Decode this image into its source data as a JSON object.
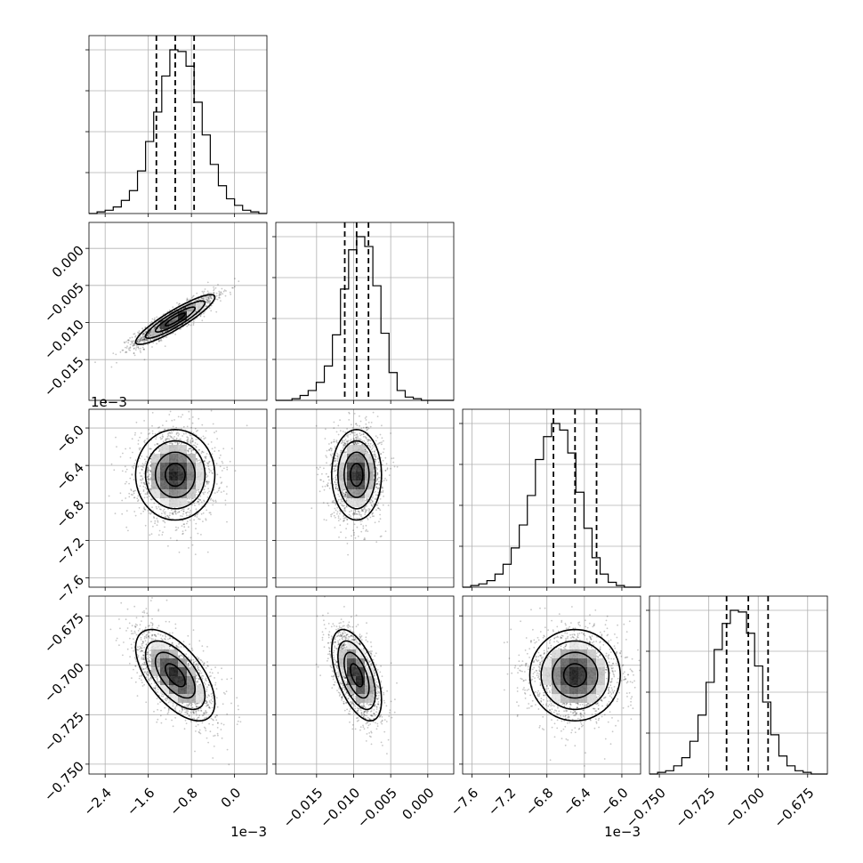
{
  "chart_data": {
    "type": "corner",
    "grid": true,
    "parameters": [
      {
        "index": 0,
        "range": [
          -2.7,
          0.6
        ],
        "ticks": [
          -2.4,
          -1.6,
          -0.8,
          0.0
        ],
        "tick_labels": [
          "−2.4",
          "−1.6",
          "−0.8",
          "0.0"
        ],
        "offset_label": "1e−3",
        "quantiles": [
          -1.45,
          -1.1,
          -0.75
        ],
        "mean": -1.1,
        "sd": 0.35
      },
      {
        "index": 1,
        "range": [
          -0.0205,
          0.0035
        ],
        "ticks": [
          -0.015,
          -0.01,
          -0.005,
          0.0
        ],
        "tick_labels": [
          "−0.015",
          "−0.010",
          "−0.005",
          "0.000"
        ],
        "offset_label": "",
        "quantiles": [
          -0.0112,
          -0.0096,
          -0.008
        ],
        "mean": -0.0096,
        "sd": 0.0016
      },
      {
        "index": 2,
        "range": [
          -7.7,
          -5.8
        ],
        "ticks": [
          -7.6,
          -7.2,
          -6.8,
          -6.4,
          -6.0
        ],
        "tick_labels": [
          "−7.6",
          "−7.2",
          "−6.8",
          "−6.4",
          "−6.0"
        ],
        "offset_label": "1e−3",
        "quantiles": [
          -6.73,
          -6.5,
          -6.27
        ],
        "mean": -6.5,
        "sd": 0.23
      },
      {
        "index": 3,
        "range": [
          -0.755,
          -0.665
        ],
        "ticks": [
          -0.75,
          -0.725,
          -0.7,
          -0.675
        ],
        "tick_labels": [
          "−0.750",
          "−0.725",
          "−0.700",
          "−0.675"
        ],
        "offset_label": "",
        "quantiles": [
          -0.716,
          -0.705,
          -0.695
        ],
        "mean": -0.705,
        "sd": 0.011
      }
    ],
    "histograms": [
      [
        0,
        1,
        2,
        4,
        8,
        14,
        26,
        44,
        62,
        84,
        100,
        99,
        90,
        68,
        48,
        30,
        17,
        9,
        5,
        2,
        1,
        0
      ],
      [
        0,
        0,
        1,
        3,
        6,
        11,
        21,
        40,
        68,
        92,
        100,
        94,
        70,
        41,
        17,
        6,
        2,
        1,
        0,
        0,
        0,
        0
      ],
      [
        0,
        1,
        2,
        4,
        8,
        14,
        24,
        38,
        56,
        78,
        92,
        100,
        96,
        82,
        58,
        36,
        18,
        8,
        3,
        1,
        0,
        0
      ],
      [
        0,
        1,
        2,
        5,
        10,
        20,
        36,
        56,
        76,
        92,
        100,
        99,
        86,
        66,
        44,
        24,
        11,
        5,
        2,
        1,
        0,
        0
      ]
    ],
    "correlations": {
      "1_0": 0.9,
      "2_0": 0.0,
      "2_1": 0.0,
      "3_0": -0.6,
      "3_1": -0.55,
      "3_2": 0.0
    },
    "contour_levels_sigma": [
      0.5,
      1.0,
      1.5,
      2.0
    ]
  }
}
